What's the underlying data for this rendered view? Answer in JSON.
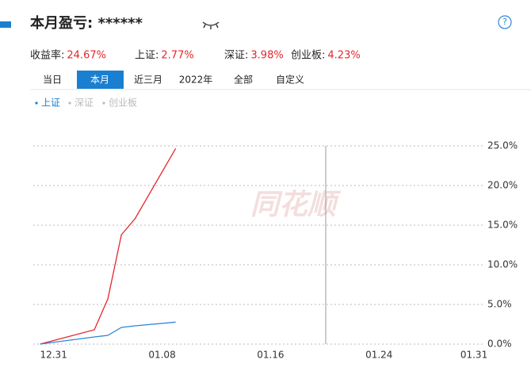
{
  "header": {
    "title": "本月盈亏: ******",
    "help": "?"
  },
  "stats": [
    {
      "label": "收益率:",
      "value": "24.67%"
    },
    {
      "label": "上证:",
      "value": "2.77%"
    },
    {
      "label": "深证:",
      "value": "3.98%"
    },
    {
      "label": "创业板:",
      "value": "4.23%"
    }
  ],
  "tabs": [
    "当日",
    "本月",
    "近三月",
    "2022年",
    "全部",
    "自定义"
  ],
  "active_tab": 1,
  "legend": [
    "上证",
    "深证",
    "创业板"
  ],
  "active_legend": 0,
  "watermark": "同花顺",
  "chart_data": {
    "type": "line",
    "x": [
      -1,
      3,
      4,
      5,
      6,
      9
    ],
    "series": [
      {
        "color": "#e5262b",
        "values": [
          0,
          1.8,
          5.7,
          13.8,
          15.8,
          24.67
        ]
      },
      {
        "color": "#2f86d6",
        "values": [
          0,
          0.9,
          1.1,
          2.1,
          2.3,
          2.77
        ]
      }
    ],
    "xlim": [
      -1.5,
      31.7
    ],
    "xticks": [
      {
        "value": 0,
        "label": "12.31"
      },
      {
        "value": 8,
        "label": "01.08"
      },
      {
        "value": 16,
        "label": "01.16"
      },
      {
        "value": 24,
        "label": "01.24"
      },
      {
        "value": 31,
        "label": "01.31"
      }
    ],
    "ylim": [
      0,
      25
    ],
    "yticks": [
      {
        "value": 0,
        "label": "0.0%"
      },
      {
        "value": 5,
        "label": "5.0%"
      },
      {
        "value": 10,
        "label": "10.0%"
      },
      {
        "value": 15,
        "label": "15.0%"
      },
      {
        "value": 20,
        "label": "20.0%"
      },
      {
        "value": 25,
        "label": "25.0%"
      }
    ],
    "grid": true
  }
}
